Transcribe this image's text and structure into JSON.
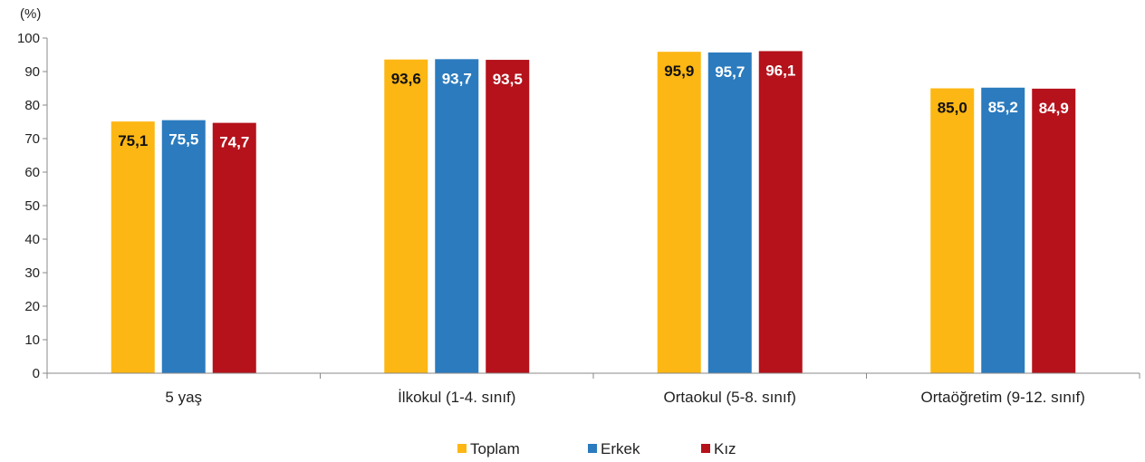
{
  "chart_data": {
    "type": "bar",
    "unit_label": "(%)",
    "categories": [
      "5 yaş",
      "İlkokul (1-4. sınıf)",
      "Ortaokul (5-8. sınıf)",
      "Ortaöğretim (9-12. sınıf)"
    ],
    "series": [
      {
        "name": "Toplam",
        "color": "#FDB714",
        "label_color": "#111111",
        "values": [
          75.1,
          93.6,
          95.9,
          85.0
        ],
        "labels": [
          "75,1",
          "93,6",
          "95,9",
          "85,0"
        ]
      },
      {
        "name": "Erkek",
        "color": "#2B7BBE",
        "label_color": "#ffffff",
        "values": [
          75.5,
          93.7,
          95.7,
          85.2
        ],
        "labels": [
          "75,5",
          "93,7",
          "95,7",
          "85,2"
        ]
      },
      {
        "name": "Kız",
        "color": "#B5121B",
        "label_color": "#ffffff",
        "values": [
          74.7,
          93.5,
          96.1,
          84.9
        ],
        "labels": [
          "74,7",
          "93,5",
          "96,1",
          "84,9"
        ]
      }
    ],
    "ylim": [
      0,
      100
    ],
    "yticks": [
      "0",
      "10",
      "20",
      "30",
      "40",
      "50",
      "60",
      "70",
      "80",
      "90",
      "100"
    ],
    "legend_position": "bottom-center",
    "grid": false
  }
}
